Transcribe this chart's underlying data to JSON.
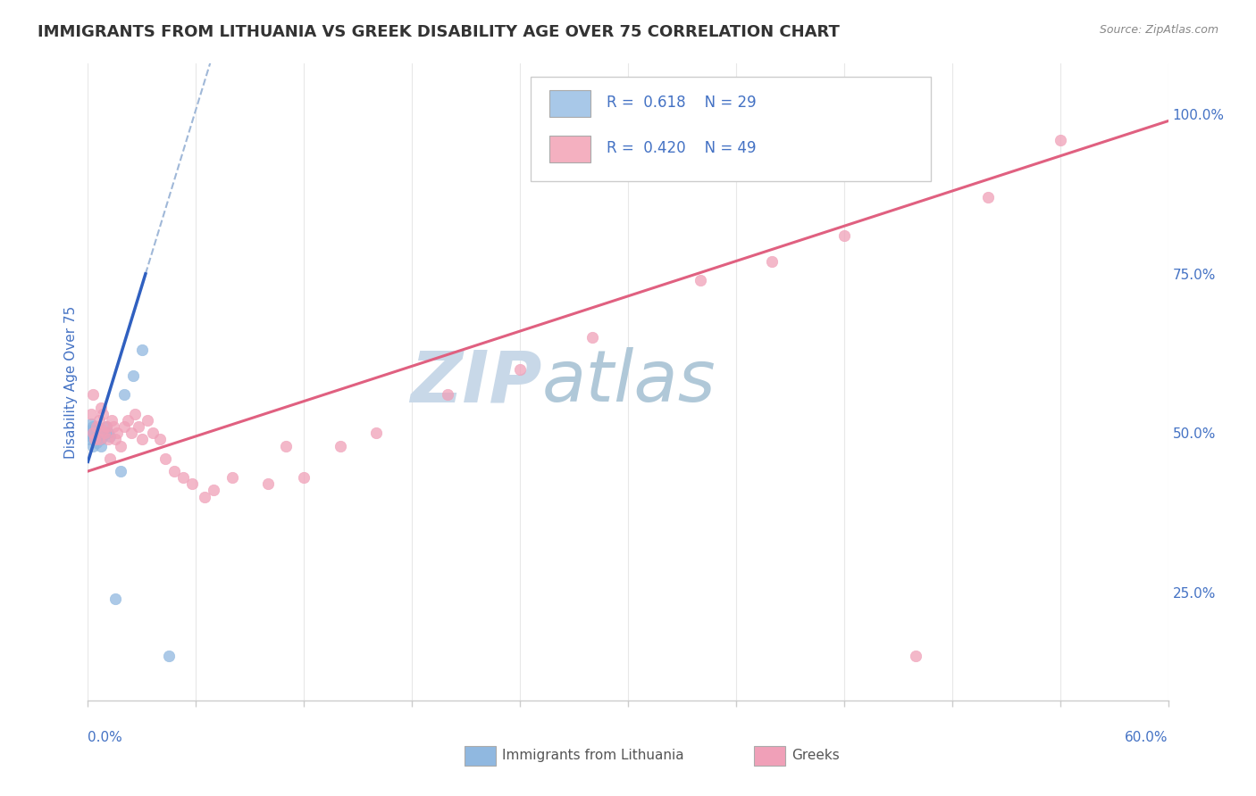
{
  "title": "IMMIGRANTS FROM LITHUANIA VS GREEK DISABILITY AGE OVER 75 CORRELATION CHART",
  "source": "Source: ZipAtlas.com",
  "ylabel": "Disability Age Over 75",
  "x_label_bottom_left": "0.0%",
  "x_label_bottom_right": "60.0%",
  "legend_entries": [
    {
      "label": "Immigrants from Lithuania",
      "color": "#a8c8e8",
      "R": 0.618,
      "N": 29
    },
    {
      "label": "Greeks",
      "color": "#f4b0c0",
      "R": 0.42,
      "N": 49
    }
  ],
  "blue_scatter": [
    [
      0.001,
      0.49
    ],
    [
      0.001,
      0.5
    ],
    [
      0.002,
      0.495
    ],
    [
      0.002,
      0.505
    ],
    [
      0.002,
      0.515
    ],
    [
      0.003,
      0.48
    ],
    [
      0.003,
      0.5
    ],
    [
      0.003,
      0.51
    ],
    [
      0.004,
      0.49
    ],
    [
      0.004,
      0.495
    ],
    [
      0.004,
      0.505
    ],
    [
      0.005,
      0.485
    ],
    [
      0.005,
      0.495
    ],
    [
      0.005,
      0.5
    ],
    [
      0.006,
      0.49
    ],
    [
      0.006,
      0.495
    ],
    [
      0.007,
      0.48
    ],
    [
      0.007,
      0.49
    ],
    [
      0.008,
      0.495
    ],
    [
      0.009,
      0.5
    ],
    [
      0.01,
      0.51
    ],
    [
      0.011,
      0.5
    ],
    [
      0.012,
      0.495
    ],
    [
      0.015,
      0.24
    ],
    [
      0.02,
      0.56
    ],
    [
      0.025,
      0.59
    ],
    [
      0.03,
      0.63
    ],
    [
      0.018,
      0.44
    ],
    [
      0.045,
      0.15
    ]
  ],
  "pink_scatter": [
    [
      0.002,
      0.53
    ],
    [
      0.003,
      0.5
    ],
    [
      0.003,
      0.56
    ],
    [
      0.004,
      0.49
    ],
    [
      0.005,
      0.51
    ],
    [
      0.006,
      0.49
    ],
    [
      0.006,
      0.52
    ],
    [
      0.007,
      0.54
    ],
    [
      0.008,
      0.505
    ],
    [
      0.008,
      0.53
    ],
    [
      0.009,
      0.5
    ],
    [
      0.01,
      0.51
    ],
    [
      0.011,
      0.49
    ],
    [
      0.012,
      0.46
    ],
    [
      0.013,
      0.52
    ],
    [
      0.014,
      0.51
    ],
    [
      0.015,
      0.49
    ],
    [
      0.016,
      0.5
    ],
    [
      0.018,
      0.48
    ],
    [
      0.02,
      0.51
    ],
    [
      0.022,
      0.52
    ],
    [
      0.024,
      0.5
    ],
    [
      0.026,
      0.53
    ],
    [
      0.028,
      0.51
    ],
    [
      0.03,
      0.49
    ],
    [
      0.033,
      0.52
    ],
    [
      0.036,
      0.5
    ],
    [
      0.04,
      0.49
    ],
    [
      0.043,
      0.46
    ],
    [
      0.048,
      0.44
    ],
    [
      0.053,
      0.43
    ],
    [
      0.058,
      0.42
    ],
    [
      0.065,
      0.4
    ],
    [
      0.07,
      0.41
    ],
    [
      0.08,
      0.43
    ],
    [
      0.1,
      0.42
    ],
    [
      0.11,
      0.48
    ],
    [
      0.12,
      0.43
    ],
    [
      0.14,
      0.48
    ],
    [
      0.16,
      0.5
    ],
    [
      0.2,
      0.56
    ],
    [
      0.24,
      0.6
    ],
    [
      0.28,
      0.65
    ],
    [
      0.34,
      0.74
    ],
    [
      0.38,
      0.77
    ],
    [
      0.42,
      0.81
    ],
    [
      0.46,
      0.15
    ],
    [
      0.5,
      0.87
    ],
    [
      0.54,
      0.96
    ]
  ],
  "xmin": 0.0,
  "xmax": 0.6,
  "ymin": 0.08,
  "ymax": 1.08,
  "bg_color": "#ffffff",
  "grid_color": "#e8e8e8",
  "scatter_blue_color": "#90b8e0",
  "scatter_blue_edge": "#90b8e0",
  "scatter_pink_color": "#f0a0b8",
  "scatter_pink_edge": "#f0a0b8",
  "trend_blue_color": "#3060c0",
  "trend_blue_dashed_color": "#a0b8d8",
  "trend_pink_color": "#e06080",
  "watermark_zip_color": "#c8d8e8",
  "watermark_atlas_color": "#b0c8d8",
  "title_color": "#333333",
  "axis_label_color": "#4472c4",
  "blue_line_xstart": 0.0,
  "blue_line_xend": 0.032,
  "blue_line_ystart": 0.455,
  "blue_line_yend": 0.75,
  "blue_dashed_xstart": 0.032,
  "blue_dashed_xend": 0.14,
  "pink_line_xstart": 0.0,
  "pink_line_xend": 0.6,
  "pink_line_ystart": 0.44,
  "pink_line_yend": 0.99
}
